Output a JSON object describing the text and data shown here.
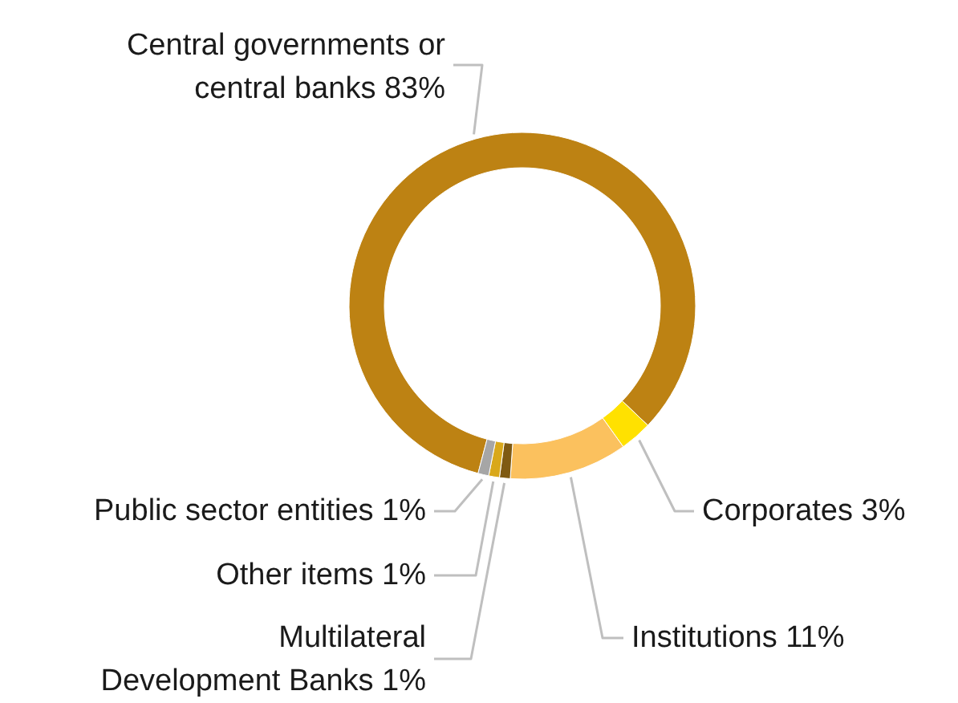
{
  "chart_data": {
    "type": "donut",
    "categories": [
      "Central governments or central banks",
      "Corporates",
      "Institutions",
      "Multilateral Development Banks",
      "Other items",
      "Public sector entities"
    ],
    "values": [
      83,
      3,
      11,
      1,
      1,
      1
    ],
    "value_labels": [
      "83%",
      "3%",
      "11%",
      "1%",
      "1%",
      "1%"
    ],
    "colors": [
      "#bd8213",
      "#ffe100",
      "#fbc15e",
      "#7f5a12",
      "#d9a81a",
      "#a6a6a6"
    ]
  }
}
